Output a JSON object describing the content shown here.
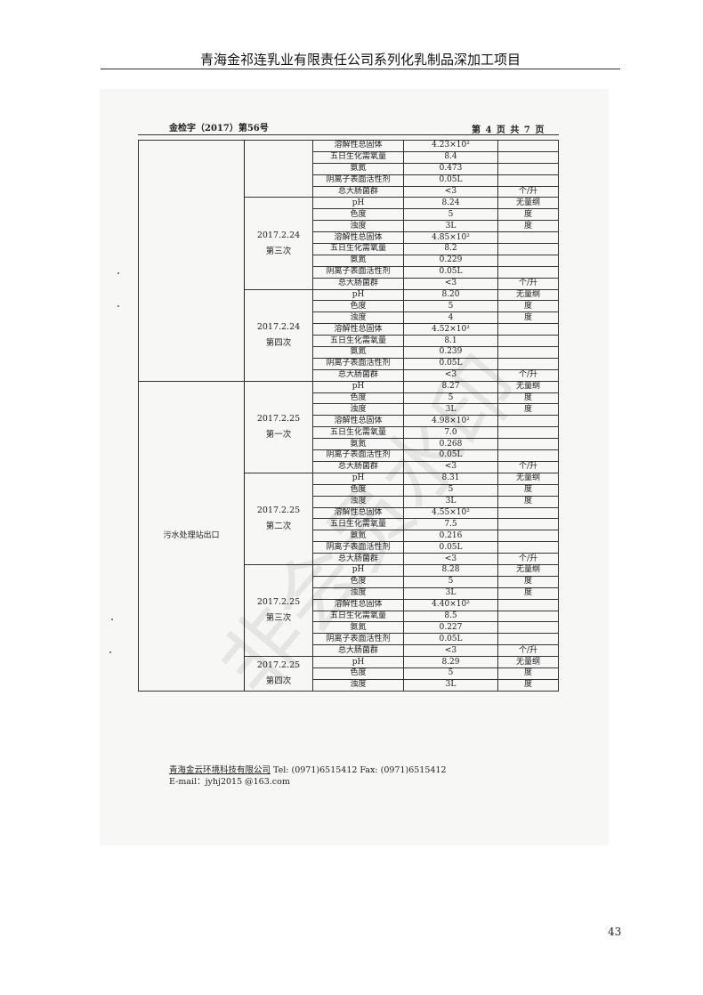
{
  "header": {
    "title": "青海金祁连乳业有限责任公司系列化乳制品深加工项目"
  },
  "report": {
    "ref": "金检字（2017）第56号",
    "page_of": "第 4 页 共 7 页"
  },
  "groups": [
    {
      "site": "",
      "date": "",
      "round": "",
      "rows": [
        [
          "溶解性总固体",
          "4.23×10²",
          ""
        ],
        [
          "五日生化需氧量",
          "8.4",
          ""
        ],
        [
          "氨氮",
          "0.473",
          ""
        ],
        [
          "阴离子表面活性剂",
          "0.05L",
          ""
        ],
        [
          "总大肠菌群",
          "<3",
          "个/升"
        ]
      ]
    },
    {
      "site": "",
      "date": "2017.2.24",
      "round": "第三次",
      "rows": [
        [
          "pH",
          "8.24",
          "无量纲"
        ],
        [
          "色度",
          "5",
          "度"
        ],
        [
          "浊度",
          "3L",
          "度"
        ],
        [
          "溶解性总固体",
          "4.85×10²",
          ""
        ],
        [
          "五日生化需氧量",
          "8.2",
          ""
        ],
        [
          "氨氮",
          "0.229",
          ""
        ],
        [
          "阴离子表面活性剂",
          "0.05L",
          ""
        ],
        [
          "总大肠菌群",
          "<3",
          "个/升"
        ]
      ]
    },
    {
      "site": "",
      "date": "2017.2.24",
      "round": "第四次",
      "rows": [
        [
          "pH",
          "8.20",
          "无量纲"
        ],
        [
          "色度",
          "5",
          "度"
        ],
        [
          "浊度",
          "4",
          "度"
        ],
        [
          "溶解性总固体",
          "4.52×10²",
          ""
        ],
        [
          "五日生化需氧量",
          "8.1",
          ""
        ],
        [
          "氨氮",
          "0.239",
          ""
        ],
        [
          "阴离子表面活性剂",
          "0.05L",
          ""
        ],
        [
          "总大肠菌群",
          "<3",
          "个/升"
        ]
      ]
    },
    {
      "site": "污水处理站出口",
      "date": "2017.2.25",
      "round": "第一次",
      "rows": [
        [
          "pH",
          "8.27",
          "无量纲"
        ],
        [
          "色度",
          "5",
          "度"
        ],
        [
          "浊度",
          "3L",
          "度"
        ],
        [
          "溶解性总固体",
          "4.98×10²",
          ""
        ],
        [
          "五日生化需氧量",
          "7.0",
          ""
        ],
        [
          "氨氮",
          "0.268",
          ""
        ],
        [
          "阴离子表面活性剂",
          "0.05L",
          ""
        ],
        [
          "总大肠菌群",
          "<3",
          "个/升"
        ]
      ]
    },
    {
      "site": "污水处理站出口",
      "date": "2017.2.25",
      "round": "第二次",
      "rows": [
        [
          "pH",
          "8.31",
          "无量纲"
        ],
        [
          "色度",
          "5",
          "度"
        ],
        [
          "浊度",
          "3L",
          "度"
        ],
        [
          "溶解性总固体",
          "4.55×10²",
          ""
        ],
        [
          "五日生化需氧量",
          "7.5",
          ""
        ],
        [
          "氨氮",
          "0.216",
          ""
        ],
        [
          "阴离子表面活性剂",
          "0.05L",
          ""
        ],
        [
          "总大肠菌群",
          "<3",
          "个/升"
        ]
      ]
    },
    {
      "site": "污水处理站出口",
      "date": "2017.2.25",
      "round": "第三次",
      "rows": [
        [
          "pH",
          "8.28",
          "无量纲"
        ],
        [
          "色度",
          "5",
          "度"
        ],
        [
          "浊度",
          "3L",
          "度"
        ],
        [
          "溶解性总固体",
          "4.40×10²",
          ""
        ],
        [
          "五日生化需氧量",
          "8.5",
          ""
        ],
        [
          "氨氮",
          "0.227",
          ""
        ],
        [
          "阴离子表面活性剂",
          "0.05L",
          ""
        ],
        [
          "总大肠菌群",
          "<3",
          "个/升"
        ]
      ]
    },
    {
      "site": "污水处理站出口",
      "date": "2017.2.25",
      "round": "第四次",
      "rows": [
        [
          "pH",
          "8.29",
          "无量纲"
        ],
        [
          "色度",
          "5",
          "度"
        ],
        [
          "浊度",
          "3L",
          "度"
        ]
      ]
    }
  ],
  "site_label": "污水处理站出口",
  "footer": {
    "company": "青海金云环境科技有限公司",
    "contact": " Tel:  (0971)6515412   Fax:  (0971)6515412",
    "email": "E-mail：jyhj2015 @163.com"
  },
  "watermark": "非会员水印",
  "page_number": "43"
}
